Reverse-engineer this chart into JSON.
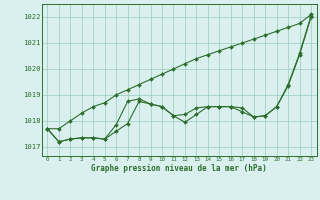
{
  "xlabel": "Graphe pression niveau de la mer (hPa)",
  "x": [
    0,
    1,
    2,
    3,
    4,
    5,
    6,
    7,
    8,
    9,
    10,
    11,
    12,
    13,
    14,
    15,
    16,
    17,
    18,
    19,
    20,
    21,
    22,
    23
  ],
  "line1": [
    1017.7,
    1017.2,
    1017.3,
    1017.35,
    1017.35,
    1017.3,
    1017.85,
    1018.75,
    1018.85,
    1018.65,
    1018.55,
    1018.2,
    1017.95,
    1018.25,
    1018.55,
    1018.55,
    1018.55,
    1018.5,
    1018.15,
    1018.2,
    1018.55,
    1019.4,
    1020.6,
    1022.05
  ],
  "line2": [
    1017.7,
    1017.2,
    1017.3,
    1017.35,
    1017.35,
    1017.3,
    1017.6,
    1017.9,
    1018.75,
    1018.65,
    1018.55,
    1018.2,
    1018.25,
    1018.5,
    1018.55,
    1018.55,
    1018.55,
    1018.35,
    1018.15,
    1018.2,
    1018.55,
    1019.35,
    1020.55,
    1022.0
  ],
  "line3": [
    1017.7,
    1017.7,
    1018.0,
    1018.3,
    1018.55,
    1018.7,
    1019.0,
    1019.2,
    1019.4,
    1019.6,
    1019.8,
    1020.0,
    1020.2,
    1020.4,
    1020.55,
    1020.7,
    1020.85,
    1021.0,
    1021.15,
    1021.3,
    1021.45,
    1021.6,
    1021.75,
    1022.1
  ],
  "bg_color": "#daf0ee",
  "grid_color": "#99ccbb",
  "line_color": "#2d6e2d",
  "text_color": "#2d6e2d",
  "ylim_min": 1016.65,
  "ylim_max": 1022.5,
  "yticks": [
    1017,
    1018,
    1019,
    1020,
    1021,
    1022
  ],
  "xticks": [
    0,
    1,
    2,
    3,
    4,
    5,
    6,
    7,
    8,
    9,
    10,
    11,
    12,
    13,
    14,
    15,
    16,
    17,
    18,
    19,
    20,
    21,
    22,
    23
  ],
  "marker_size": 2.0,
  "line_width": 0.8
}
